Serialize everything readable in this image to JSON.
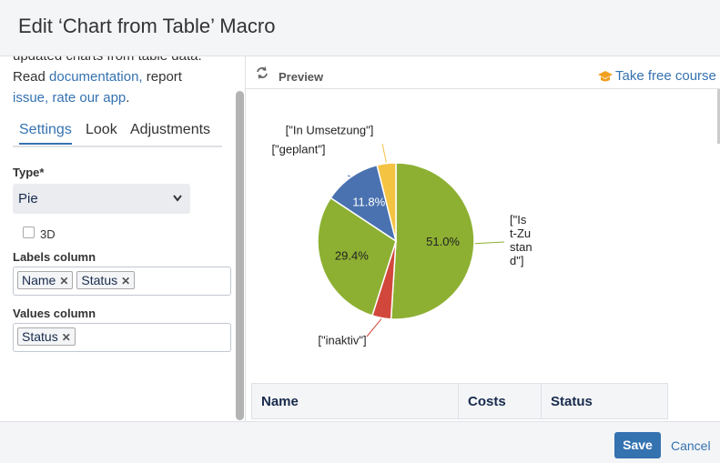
{
  "header": {
    "title": "Edit ‘Chart from Table’ Macro"
  },
  "sidebar": {
    "intro": "updated charts from table data.",
    "read": "Read",
    "link_documentation": "documentation,",
    "report": "report",
    "link_issue": "issue,",
    "link_rate": "rate our app",
    "period": ".",
    "tabs": [
      "Settings",
      "Look",
      "Adjustments"
    ],
    "type_label": "Type*",
    "type_value": "Pie",
    "checkbox_3d": "3D",
    "labels_column": {
      "label": "Labels column",
      "tags": [
        "Name",
        "Status"
      ]
    },
    "values_column": {
      "label": "Values column",
      "tags": [
        "Status"
      ]
    }
  },
  "preview": {
    "title": "Preview",
    "course_link": "Take free course"
  },
  "chart_data": {
    "type": "pie",
    "categories": [
      "[\"Ist-Zustand\"]",
      "[\"inaktiv\"]",
      null,
      "[\"geplant\"]",
      "[\"In Umsetzung\"]"
    ],
    "values": [
      51.0,
      3.9,
      29.4,
      11.8,
      3.9
    ],
    "value_labels": [
      "51.0%",
      null,
      "29.4%",
      "11.8%",
      null
    ],
    "colors": [
      "#8db032",
      "#d2473b",
      "#8db032",
      "#4a72b0",
      "#f5c342"
    ]
  },
  "table": {
    "headers": [
      "Name",
      "Costs",
      "Status"
    ]
  },
  "footer": {
    "save": "Save",
    "cancel": "Cancel"
  }
}
